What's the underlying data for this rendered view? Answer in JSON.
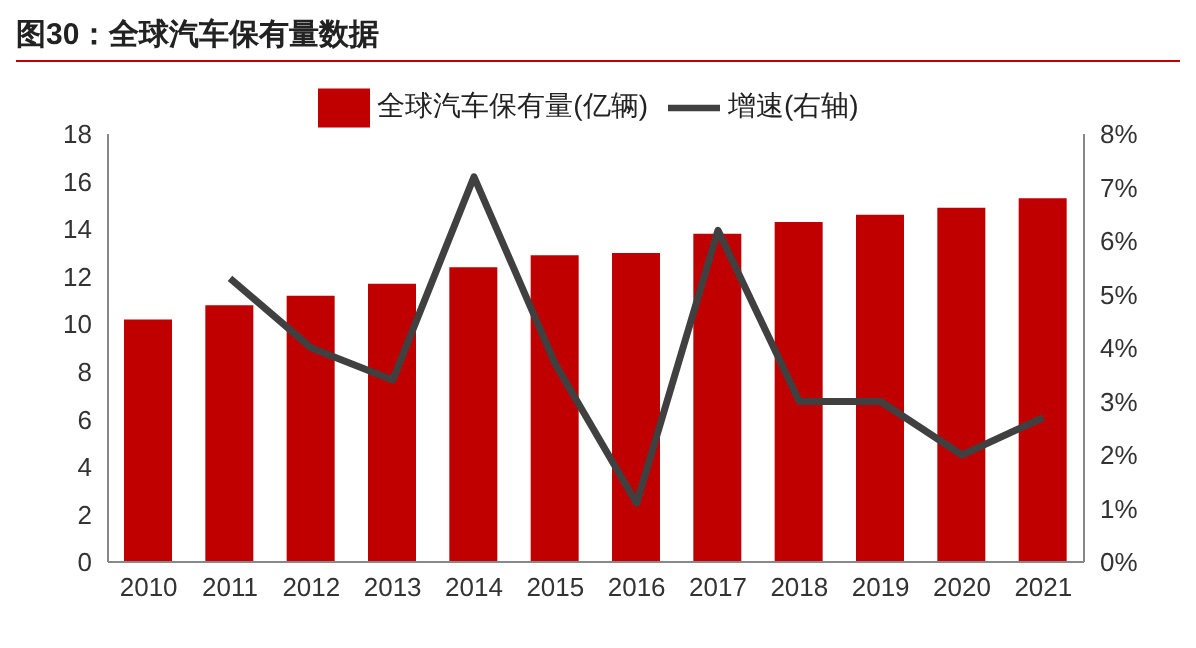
{
  "chart_data": {
    "type": "bar",
    "title": "图30：全球汽车保有量数据",
    "categories": [
      "2010",
      "2011",
      "2012",
      "2013",
      "2014",
      "2015",
      "2016",
      "2017",
      "2018",
      "2019",
      "2020",
      "2021"
    ],
    "series": [
      {
        "name": "全球汽车保有量(亿辆)",
        "color": "#c00000",
        "values": [
          10.2,
          10.8,
          11.2,
          11.7,
          12.4,
          12.9,
          13.0,
          13.8,
          14.3,
          14.6,
          14.9,
          15.3
        ]
      },
      {
        "name": "增速(右轴)",
        "type": "line",
        "axis": "y2",
        "color": "#404040",
        "values": [
          null,
          5.3,
          4.0,
          3.4,
          7.2,
          3.7,
          1.1,
          6.2,
          3.0,
          3.0,
          2.0,
          2.7
        ]
      }
    ],
    "ylim": [
      0,
      18
    ],
    "yticks": [
      0,
      2,
      4,
      6,
      8,
      10,
      12,
      14,
      16,
      18
    ],
    "y2lim": [
      0,
      8
    ],
    "y2ticks": [
      {
        "value": 0,
        "label": "0%"
      },
      {
        "value": 1,
        "label": "1%"
      },
      {
        "value": 2,
        "label": "2%"
      },
      {
        "value": 3,
        "label": "3%"
      },
      {
        "value": 4,
        "label": "4%"
      },
      {
        "value": 5,
        "label": "5%"
      },
      {
        "value": 6,
        "label": "6%"
      },
      {
        "value": 7,
        "label": "7%"
      },
      {
        "value": 8,
        "label": "8%"
      }
    ],
    "grid": false,
    "legend": "top",
    "marker": "none"
  }
}
